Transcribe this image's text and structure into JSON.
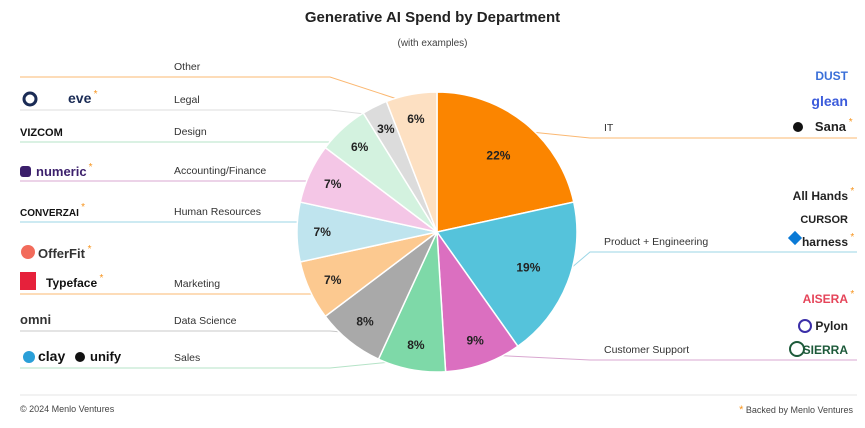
{
  "chart_data": {
    "type": "pie",
    "title": "Generative AI Spend by Department",
    "subtitle": "(with examples)",
    "slices": [
      {
        "name": "IT",
        "value": 22,
        "label": "22%",
        "color": "#fb8500",
        "logos": [
          {
            "text": "DUST"
          },
          {
            "text": "glean"
          },
          {
            "text": "Sana",
            "backed": true
          }
        ]
      },
      {
        "name": "Product + Engineering",
        "value": 19,
        "label": "19%",
        "color": "#55c3db",
        "logos": [
          {
            "text": "All Hands",
            "backed": true
          },
          {
            "text": "CURSOR"
          },
          {
            "text": "harness",
            "backed": true
          }
        ]
      },
      {
        "name": "Customer Support",
        "value": 9,
        "label": "9%",
        "color": "#db6fc0",
        "logos": [
          {
            "text": "AISERA",
            "backed": true
          },
          {
            "text": "Pylon"
          },
          {
            "text": "SIERRA"
          }
        ]
      },
      {
        "name": "Sales",
        "value": 8,
        "label": "8%",
        "color": "#7ed9a8",
        "logos": [
          {
            "text": "clay"
          },
          {
            "text": "unify"
          }
        ]
      },
      {
        "name": "Data Science",
        "value": 8,
        "label": "8%",
        "color": "#a9a9a9",
        "logos": [
          {
            "text": "omni"
          }
        ]
      },
      {
        "name": "Marketing",
        "value": 7,
        "label": "7%",
        "color": "#fcc990",
        "logos": [
          {
            "text": "OfferFit",
            "backed": true
          },
          {
            "text": "Typeface",
            "backed": true
          }
        ]
      },
      {
        "name": "Human Resources",
        "value": 7,
        "label": "7%",
        "color": "#bfe4ee",
        "logos": [
          {
            "text": "CONVERZAI",
            "backed": true
          }
        ]
      },
      {
        "name": "Accounting/Finance",
        "value": 7,
        "label": "7%",
        "color": "#f4c6e6",
        "logos": [
          {
            "text": "numeric",
            "backed": true
          }
        ]
      },
      {
        "name": "Design",
        "value": 6,
        "label": "6%",
        "color": "#d3f2df",
        "logos": [
          {
            "text": "VIZCOM"
          }
        ]
      },
      {
        "name": "Legal",
        "value": 3,
        "label": "3%",
        "color": "#dcdcdc",
        "logos": [
          {
            "text": "eve",
            "backed": true
          }
        ]
      },
      {
        "name": "Other",
        "value": 6,
        "label": "6%",
        "color": "#fde0c2",
        "logos": []
      }
    ]
  },
  "footer": {
    "copyright": "© 2024 Menlo Ventures",
    "backed_star": "*",
    "backed_label": "Backed by Menlo Ventures"
  },
  "colors": {
    "accent": "#f7941d",
    "line_orange": "#fbb872",
    "line_blue": "#9bd6e6",
    "line_purple": "#d9a7d0",
    "line_green": "#b5e3c7"
  }
}
